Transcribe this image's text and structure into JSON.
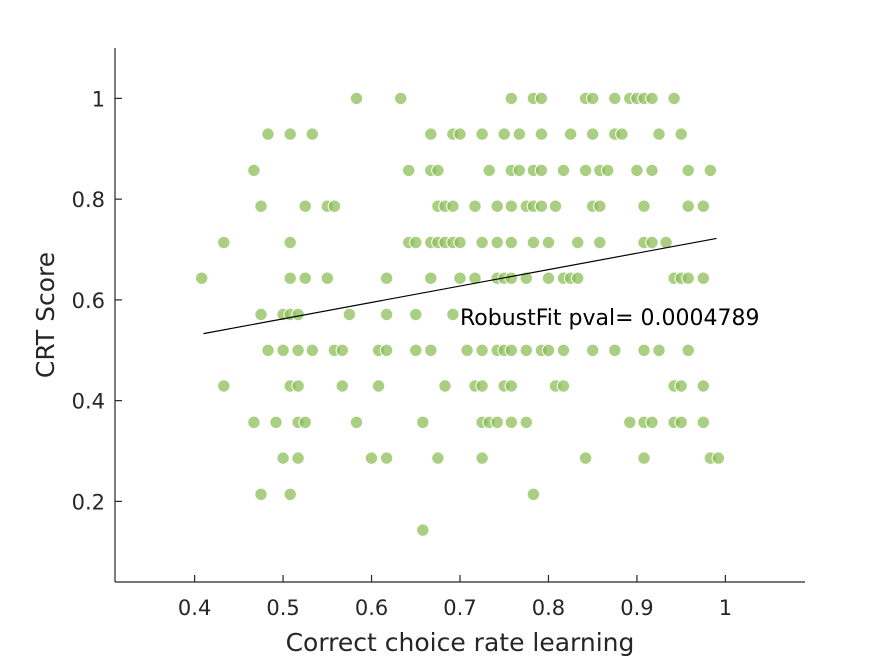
{
  "chart_data": {
    "type": "scatter",
    "title": "",
    "xlabel": "Correct choice rate learning",
    "ylabel": "CRT Score",
    "xlim": [
      0.31,
      1.09
    ],
    "ylim": [
      0.04,
      1.1
    ],
    "xticks": [
      0.4,
      0.5,
      0.6,
      0.7,
      0.8,
      0.9,
      1
    ],
    "xtick_labels": [
      "0.4",
      "0.5",
      "0.6",
      "0.7",
      "0.8",
      "0.9",
      "1"
    ],
    "yticks": [
      0.2,
      0.4,
      0.6,
      0.8,
      1
    ],
    "ytick_labels": [
      "0.2",
      "0.4",
      "0.6",
      "0.8",
      "1"
    ],
    "grid": false,
    "marker_color": "#8dbf5a",
    "edge_color": "#ffffff",
    "fit_line": {
      "x": [
        0.41,
        0.99
      ],
      "y": [
        0.533,
        0.722
      ],
      "color": "#000000"
    },
    "annotation": {
      "text": "RobustFit pval= 0.0004789",
      "x": 0.7,
      "y": 0.55
    },
    "series": [
      {
        "points": [
          [
            0.583,
            1.0
          ],
          [
            0.633,
            1.0
          ],
          [
            0.758,
            1.0
          ],
          [
            0.783,
            1.0
          ],
          [
            0.792,
            1.0
          ],
          [
            0.842,
            1.0
          ],
          [
            0.85,
            1.0
          ],
          [
            0.875,
            1.0
          ],
          [
            0.892,
            1.0
          ],
          [
            0.9,
            1.0
          ],
          [
            0.908,
            1.0
          ],
          [
            0.917,
            1.0
          ],
          [
            0.942,
            1.0
          ],
          [
            0.483,
            0.929
          ],
          [
            0.508,
            0.929
          ],
          [
            0.533,
            0.929
          ],
          [
            0.667,
            0.929
          ],
          [
            0.692,
            0.929
          ],
          [
            0.7,
            0.929
          ],
          [
            0.725,
            0.929
          ],
          [
            0.75,
            0.929
          ],
          [
            0.767,
            0.929
          ],
          [
            0.792,
            0.929
          ],
          [
            0.825,
            0.929
          ],
          [
            0.85,
            0.929
          ],
          [
            0.875,
            0.929
          ],
          [
            0.883,
            0.929
          ],
          [
            0.925,
            0.929
          ],
          [
            0.95,
            0.929
          ],
          [
            0.467,
            0.857
          ],
          [
            0.642,
            0.857
          ],
          [
            0.667,
            0.857
          ],
          [
            0.675,
            0.857
          ],
          [
            0.733,
            0.857
          ],
          [
            0.758,
            0.857
          ],
          [
            0.767,
            0.857
          ],
          [
            0.783,
            0.857
          ],
          [
            0.792,
            0.857
          ],
          [
            0.817,
            0.857
          ],
          [
            0.842,
            0.857
          ],
          [
            0.858,
            0.857
          ],
          [
            0.867,
            0.857
          ],
          [
            0.9,
            0.857
          ],
          [
            0.917,
            0.857
          ],
          [
            0.958,
            0.857
          ],
          [
            0.983,
            0.857
          ],
          [
            0.475,
            0.786
          ],
          [
            0.525,
            0.786
          ],
          [
            0.55,
            0.786
          ],
          [
            0.558,
            0.786
          ],
          [
            0.675,
            0.786
          ],
          [
            0.683,
            0.786
          ],
          [
            0.692,
            0.786
          ],
          [
            0.717,
            0.786
          ],
          [
            0.742,
            0.786
          ],
          [
            0.758,
            0.786
          ],
          [
            0.775,
            0.786
          ],
          [
            0.783,
            0.786
          ],
          [
            0.792,
            0.786
          ],
          [
            0.808,
            0.786
          ],
          [
            0.85,
            0.786
          ],
          [
            0.858,
            0.786
          ],
          [
            0.908,
            0.786
          ],
          [
            0.958,
            0.786
          ],
          [
            0.975,
            0.786
          ],
          [
            0.433,
            0.714
          ],
          [
            0.508,
            0.714
          ],
          [
            0.642,
            0.714
          ],
          [
            0.65,
            0.714
          ],
          [
            0.667,
            0.714
          ],
          [
            0.675,
            0.714
          ],
          [
            0.683,
            0.714
          ],
          [
            0.692,
            0.714
          ],
          [
            0.7,
            0.714
          ],
          [
            0.725,
            0.714
          ],
          [
            0.742,
            0.714
          ],
          [
            0.758,
            0.714
          ],
          [
            0.783,
            0.714
          ],
          [
            0.8,
            0.714
          ],
          [
            0.833,
            0.714
          ],
          [
            0.858,
            0.714
          ],
          [
            0.908,
            0.714
          ],
          [
            0.917,
            0.714
          ],
          [
            0.933,
            0.714
          ],
          [
            0.408,
            0.643
          ],
          [
            0.508,
            0.643
          ],
          [
            0.525,
            0.643
          ],
          [
            0.55,
            0.643
          ],
          [
            0.617,
            0.643
          ],
          [
            0.667,
            0.643
          ],
          [
            0.7,
            0.643
          ],
          [
            0.717,
            0.643
          ],
          [
            0.742,
            0.643
          ],
          [
            0.75,
            0.643
          ],
          [
            0.758,
            0.643
          ],
          [
            0.775,
            0.643
          ],
          [
            0.8,
            0.643
          ],
          [
            0.817,
            0.643
          ],
          [
            0.825,
            0.643
          ],
          [
            0.833,
            0.643
          ],
          [
            0.942,
            0.643
          ],
          [
            0.95,
            0.643
          ],
          [
            0.958,
            0.643
          ],
          [
            0.975,
            0.643
          ],
          [
            0.475,
            0.571
          ],
          [
            0.5,
            0.571
          ],
          [
            0.508,
            0.571
          ],
          [
            0.517,
            0.571
          ],
          [
            0.575,
            0.571
          ],
          [
            0.617,
            0.571
          ],
          [
            0.65,
            0.571
          ],
          [
            0.692,
            0.571
          ],
          [
            0.483,
            0.5
          ],
          [
            0.5,
            0.5
          ],
          [
            0.517,
            0.5
          ],
          [
            0.533,
            0.5
          ],
          [
            0.558,
            0.5
          ],
          [
            0.567,
            0.5
          ],
          [
            0.608,
            0.5
          ],
          [
            0.617,
            0.5
          ],
          [
            0.65,
            0.5
          ],
          [
            0.667,
            0.5
          ],
          [
            0.708,
            0.5
          ],
          [
            0.725,
            0.5
          ],
          [
            0.742,
            0.5
          ],
          [
            0.75,
            0.5
          ],
          [
            0.758,
            0.5
          ],
          [
            0.775,
            0.5
          ],
          [
            0.792,
            0.5
          ],
          [
            0.8,
            0.5
          ],
          [
            0.817,
            0.5
          ],
          [
            0.85,
            0.5
          ],
          [
            0.875,
            0.5
          ],
          [
            0.908,
            0.5
          ],
          [
            0.925,
            0.5
          ],
          [
            0.958,
            0.5
          ],
          [
            0.433,
            0.429
          ],
          [
            0.508,
            0.429
          ],
          [
            0.517,
            0.429
          ],
          [
            0.567,
            0.429
          ],
          [
            0.608,
            0.429
          ],
          [
            0.683,
            0.429
          ],
          [
            0.717,
            0.429
          ],
          [
            0.725,
            0.429
          ],
          [
            0.75,
            0.429
          ],
          [
            0.758,
            0.429
          ],
          [
            0.808,
            0.429
          ],
          [
            0.817,
            0.429
          ],
          [
            0.942,
            0.429
          ],
          [
            0.95,
            0.429
          ],
          [
            0.975,
            0.429
          ],
          [
            0.467,
            0.357
          ],
          [
            0.492,
            0.357
          ],
          [
            0.517,
            0.357
          ],
          [
            0.525,
            0.357
          ],
          [
            0.583,
            0.357
          ],
          [
            0.658,
            0.357
          ],
          [
            0.725,
            0.357
          ],
          [
            0.733,
            0.357
          ],
          [
            0.742,
            0.357
          ],
          [
            0.758,
            0.357
          ],
          [
            0.775,
            0.357
          ],
          [
            0.892,
            0.357
          ],
          [
            0.908,
            0.357
          ],
          [
            0.917,
            0.357
          ],
          [
            0.942,
            0.357
          ],
          [
            0.95,
            0.357
          ],
          [
            0.975,
            0.357
          ],
          [
            0.5,
            0.286
          ],
          [
            0.517,
            0.286
          ],
          [
            0.6,
            0.286
          ],
          [
            0.617,
            0.286
          ],
          [
            0.675,
            0.286
          ],
          [
            0.725,
            0.286
          ],
          [
            0.842,
            0.286
          ],
          [
            0.908,
            0.286
          ],
          [
            0.983,
            0.286
          ],
          [
            0.992,
            0.286
          ],
          [
            0.475,
            0.214
          ],
          [
            0.508,
            0.214
          ],
          [
            0.783,
            0.214
          ],
          [
            0.658,
            0.143
          ]
        ]
      }
    ]
  }
}
